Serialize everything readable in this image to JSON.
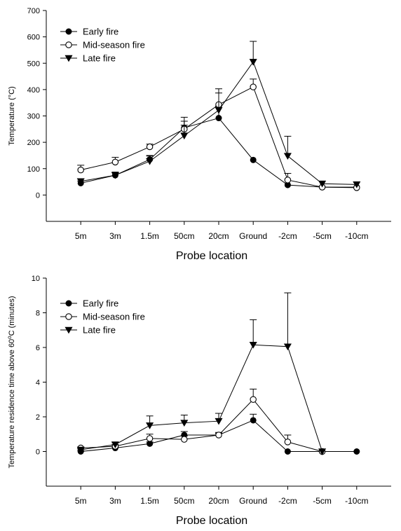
{
  "chart_data": [
    {
      "type": "line",
      "categories": [
        "5m",
        "3m",
        "1.5m",
        "50cm",
        "20cm",
        "Ground",
        "-2cm",
        "-5cm",
        "-10cm"
      ],
      "xlabel": "Probe location",
      "ylabel": "Temperature (°C)",
      "ylim": [
        -100,
        700
      ],
      "yticks": [
        0,
        100,
        200,
        300,
        400,
        500,
        600,
        700
      ],
      "grid": false,
      "legend": "top-left",
      "series": [
        {
          "name": "Early fire",
          "marker": "filled-circle",
          "values": [
            45,
            75,
            135,
            255,
            292,
            133,
            38,
            30,
            30
          ],
          "errors": [
            8,
            12,
            15,
            40,
            45,
            0,
            0,
            0,
            0
          ]
        },
        {
          "name": "Mid-season fire",
          "marker": "open-circle",
          "values": [
            95,
            125,
            183,
            250,
            343,
            410,
            57,
            30,
            28
          ],
          "errors": [
            18,
            18,
            10,
            30,
            60,
            30,
            25,
            0,
            0
          ]
        },
        {
          "name": "Late fire",
          "marker": "filled-triangle-down",
          "values": [
            52,
            75,
            128,
            225,
            322,
            505,
            148,
            43,
            40
          ],
          "errors": [
            10,
            10,
            20,
            40,
            65,
            78,
            75,
            0,
            0
          ]
        }
      ]
    },
    {
      "type": "line",
      "categories": [
        "5m",
        "3m",
        "1.5m",
        "50cm",
        "20cm",
        "Ground",
        "-2cm",
        "-5cm",
        "-10cm"
      ],
      "xlabel": "Probe location",
      "ylabel": "Temperature residence time above 60",
      "ylabel_sup": "o",
      "ylabel_tail": "C (minutes)",
      "ylim": [
        -2,
        10
      ],
      "yticks": [
        0,
        2,
        4,
        6,
        8,
        10
      ],
      "grid": false,
      "legend": "top-left",
      "series": [
        {
          "name": "Early fire",
          "marker": "filled-circle",
          "values": [
            0.0,
            0.2,
            0.45,
            0.95,
            0.95,
            1.8,
            0.0,
            0.0,
            0.0
          ],
          "errors": [
            0.05,
            0.05,
            0.1,
            0.2,
            0.1,
            0.35,
            0.0,
            0.0,
            0.0
          ]
        },
        {
          "name": "Mid-season fire",
          "marker": "open-circle",
          "values": [
            0.2,
            0.3,
            0.75,
            0.7,
            0.95,
            3.0,
            0.55,
            0.0,
            null
          ],
          "errors": [
            0.05,
            0.1,
            0.25,
            0.2,
            0.15,
            0.6,
            0.4,
            0.0,
            0.0
          ]
        },
        {
          "name": "Late fire",
          "marker": "filled-triangle-down",
          "values": [
            0.1,
            0.4,
            1.5,
            1.65,
            1.75,
            6.15,
            6.05,
            0.0,
            null
          ],
          "errors": [
            0.05,
            0.1,
            0.55,
            0.45,
            0.45,
            1.45,
            3.1,
            0.0,
            0.0
          ]
        }
      ]
    }
  ]
}
